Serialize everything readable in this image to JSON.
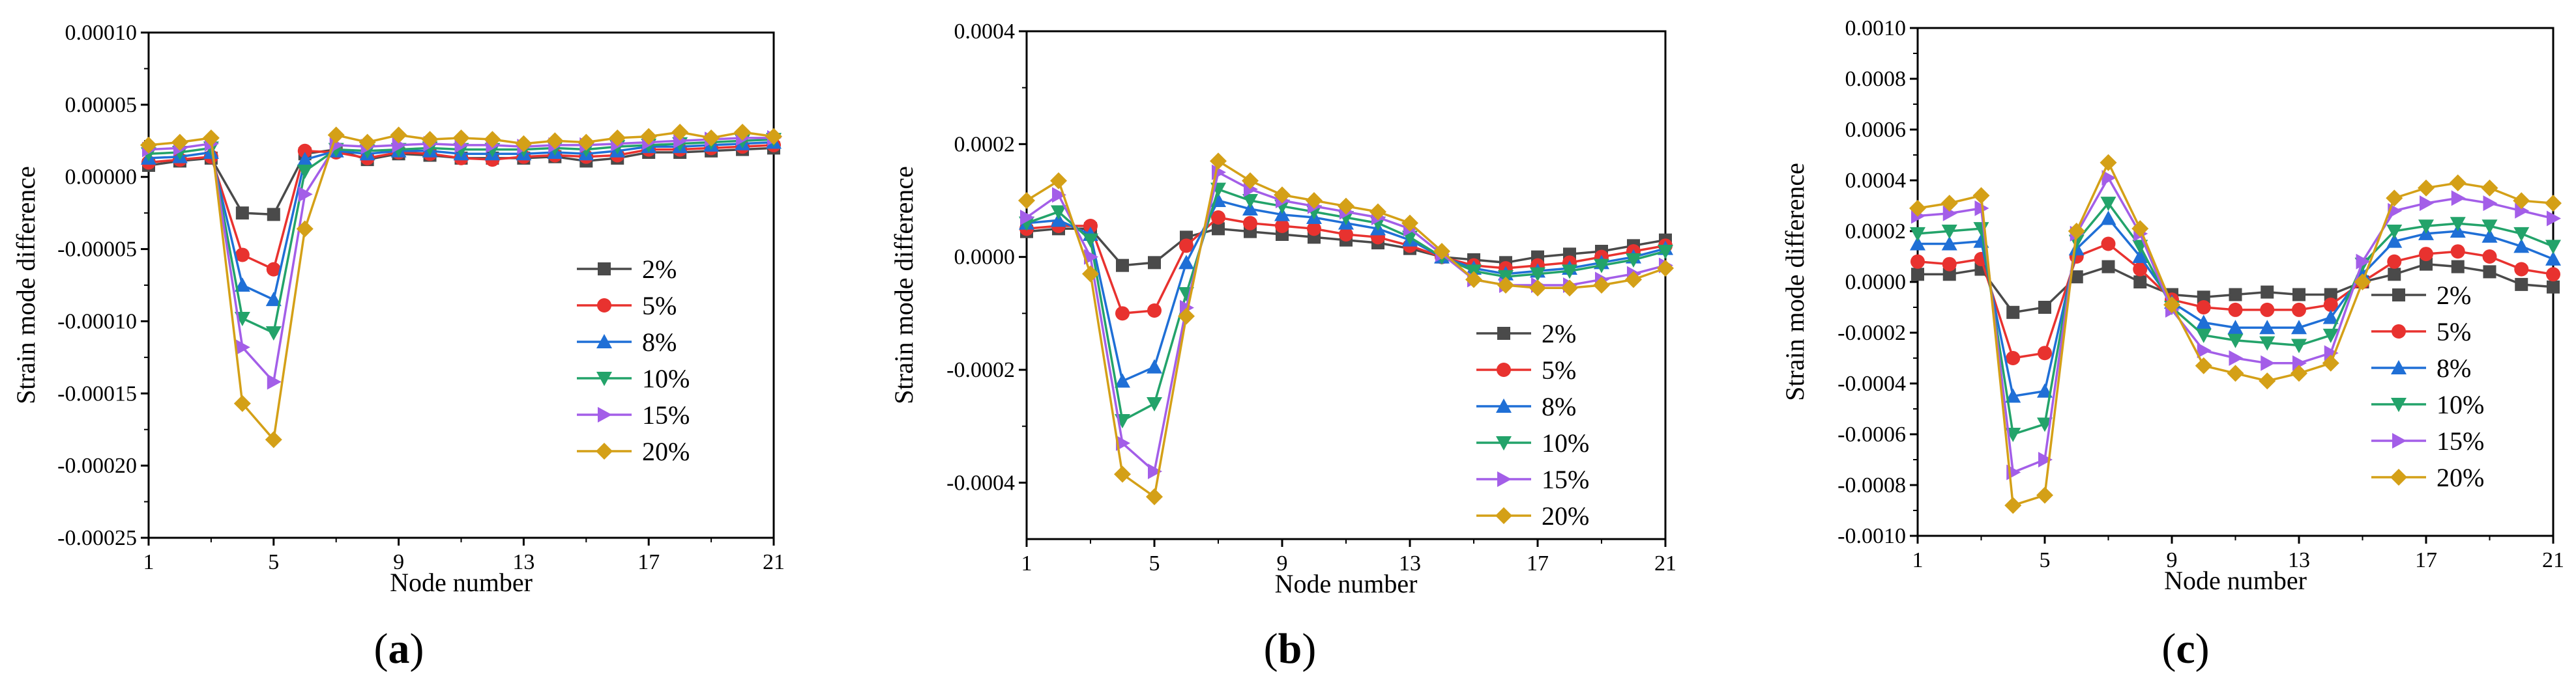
{
  "chart_data": [
    {
      "type": "line",
      "panel_label": "a",
      "xlabel": "Node number",
      "ylabel": "Strain mode difference",
      "x": [
        1,
        2,
        3,
        4,
        5,
        6,
        7,
        8,
        9,
        10,
        11,
        12,
        13,
        14,
        15,
        16,
        17,
        18,
        19,
        20,
        21
      ],
      "xticks": [
        1,
        5,
        9,
        13,
        17,
        21
      ],
      "xtick_labels": [
        "1",
        "5",
        "9",
        "13",
        "17",
        "21"
      ],
      "xlim": [
        1,
        21
      ],
      "ylim": [
        -0.00025,
        0.0001
      ],
      "yticks": [
        -0.00025,
        -0.0002,
        -0.00015,
        -0.0001,
        -5e-05,
        0,
        5e-05,
        0.0001
      ],
      "ytick_labels": [
        "-0.00025",
        "-0.00020",
        "-0.00015",
        "-0.00010",
        "-0.00005",
        "0.00000",
        "0.00005",
        "0.00010"
      ],
      "legend_position": "lower-right",
      "series": [
        {
          "name": "2%",
          "color": "#4a4a4a",
          "marker": "square",
          "values": [
            8e-06,
            1.1e-05,
            1.3e-05,
            -2.5e-05,
            -2.6e-05,
            1.6e-05,
            1.9e-05,
            1.2e-05,
            1.6e-05,
            1.5e-05,
            1.3e-05,
            1.3e-05,
            1.3e-05,
            1.4e-05,
            1.1e-05,
            1.3e-05,
            1.7e-05,
            1.7e-05,
            1.8e-05,
            1.9e-05,
            2e-05
          ]
        },
        {
          "name": "5%",
          "color": "#e8322f",
          "marker": "circle",
          "values": [
            1e-05,
            1.2e-05,
            1.4e-05,
            -5.4e-05,
            -6.4e-05,
            1.8e-05,
            1.7e-05,
            1.3e-05,
            1.7e-05,
            1.6e-05,
            1.3e-05,
            1.2e-05,
            1.4e-05,
            1.5e-05,
            1.4e-05,
            1.5e-05,
            1.9e-05,
            1.9e-05,
            2e-05,
            2.1e-05,
            2.2e-05
          ]
        },
        {
          "name": "8%",
          "color": "#1f6fd6",
          "marker": "triangle-up",
          "values": [
            1.3e-05,
            1.4e-05,
            1.7e-05,
            -7.5e-05,
            -8.5e-05,
            1.2e-05,
            1.8e-05,
            1.6e-05,
            1.8e-05,
            1.8e-05,
            1.6e-05,
            1.6e-05,
            1.6e-05,
            1.7e-05,
            1.6e-05,
            1.8e-05,
            2.1e-05,
            2.1e-05,
            2.2e-05,
            2.3e-05,
            2.4e-05
          ]
        },
        {
          "name": "10%",
          "color": "#23a36a",
          "marker": "triangle-down",
          "values": [
            1.6e-05,
            1.7e-05,
            2e-05,
            -9.8e-05,
            -0.000108,
            4e-06,
            1.9e-05,
            1.8e-05,
            1.9e-05,
            2e-05,
            1.9e-05,
            1.9e-05,
            1.9e-05,
            2e-05,
            1.9e-05,
            2.1e-05,
            2.2e-05,
            2.3e-05,
            2.4e-05,
            2.5e-05,
            2.6e-05
          ]
        },
        {
          "name": "15%",
          "color": "#a35ee8",
          "marker": "triangle-right",
          "values": [
            1.9e-05,
            2e-05,
            2.3e-05,
            -0.000118,
            -0.000142,
            -1.2e-05,
            2.2e-05,
            2.1e-05,
            2.2e-05,
            2.3e-05,
            2.2e-05,
            2.2e-05,
            2.1e-05,
            2.2e-05,
            2.2e-05,
            2.3e-05,
            2.4e-05,
            2.5e-05,
            2.6e-05,
            2.7e-05,
            2.7e-05
          ]
        },
        {
          "name": "20%",
          "color": "#d4a017",
          "marker": "diamond",
          "values": [
            2.2e-05,
            2.4e-05,
            2.7e-05,
            -0.000157,
            -0.000182,
            -3.6e-05,
            2.9e-05,
            2.4e-05,
            2.9e-05,
            2.6e-05,
            2.7e-05,
            2.6e-05,
            2.3e-05,
            2.5e-05,
            2.4e-05,
            2.7e-05,
            2.8e-05,
            3.1e-05,
            2.7e-05,
            3.1e-05,
            2.8e-05
          ]
        }
      ]
    },
    {
      "type": "line",
      "panel_label": "b",
      "xlabel": "Node number",
      "ylabel": "Strain mode difference",
      "x": [
        1,
        2,
        3,
        4,
        5,
        6,
        7,
        8,
        9,
        10,
        11,
        12,
        13,
        14,
        15,
        16,
        17,
        18,
        19,
        20,
        21
      ],
      "xticks": [
        1,
        5,
        9,
        13,
        17,
        21
      ],
      "xtick_labels": [
        "1",
        "5",
        "9",
        "13",
        "17",
        "21"
      ],
      "xlim": [
        1,
        21
      ],
      "ylim": [
        -0.0005,
        0.0004
      ],
      "yticks": [
        -0.0004,
        -0.0002,
        0,
        0.0002,
        0.0004
      ],
      "ytick_labels": [
        "-0.0004",
        "-0.0002",
        "0.0000",
        "0.0002",
        "0.0004"
      ],
      "legend_position": "lower-right",
      "series": [
        {
          "name": "2%",
          "color": "#4a4a4a",
          "marker": "square",
          "values": [
            4.5e-05,
            5e-05,
            5e-05,
            -1.5e-05,
            -1e-05,
            3.5e-05,
            5e-05,
            4.5e-05,
            4e-05,
            3.5e-05,
            3e-05,
            2.5e-05,
            1.5e-05,
            0,
            -5e-06,
            -1e-05,
            0,
            5e-06,
            1e-05,
            2e-05,
            3e-05
          ]
        },
        {
          "name": "5%",
          "color": "#e8322f",
          "marker": "circle",
          "values": [
            5e-05,
            5.5e-05,
            5.5e-05,
            -0.0001,
            -9.5e-05,
            2e-05,
            7e-05,
            6e-05,
            5.5e-05,
            5e-05,
            4e-05,
            3.5e-05,
            2e-05,
            0,
            -1.5e-05,
            -2e-05,
            -1.5e-05,
            -1e-05,
            0,
            1e-05,
            2e-05
          ]
        },
        {
          "name": "8%",
          "color": "#1f6fd6",
          "marker": "triangle-up",
          "values": [
            6e-05,
            6.5e-05,
            4e-05,
            -0.00022,
            -0.000195,
            -1e-05,
            0.0001,
            8.5e-05,
            7.5e-05,
            7e-05,
            6e-05,
            5e-05,
            3e-05,
            0,
            -2e-05,
            -3e-05,
            -2.5e-05,
            -2e-05,
            -1e-05,
            0,
            1.5e-05
          ]
        },
        {
          "name": "10%",
          "color": "#23a36a",
          "marker": "triangle-down",
          "values": [
            6e-05,
            8e-05,
            3e-05,
            -0.00029,
            -0.00026,
            -6.5e-05,
            0.00012,
            0.0001,
            9e-05,
            8e-05,
            7e-05,
            6e-05,
            3.5e-05,
            0,
            -2.5e-05,
            -3.5e-05,
            -3e-05,
            -2.5e-05,
            -1.5e-05,
            -5e-06,
            1e-05
          ]
        },
        {
          "name": "15%",
          "color": "#a35ee8",
          "marker": "triangle-right",
          "values": [
            7e-05,
            0.00011,
            0,
            -0.00033,
            -0.00038,
            -9e-05,
            0.00015,
            0.00012,
            0.0001,
            9e-05,
            8e-05,
            7e-05,
            5e-05,
            5e-06,
            -4e-05,
            -5e-05,
            -5e-05,
            -5e-05,
            -4e-05,
            -3e-05,
            -1.5e-05
          ]
        },
        {
          "name": "20%",
          "color": "#d4a017",
          "marker": "diamond",
          "values": [
            0.0001,
            0.000135,
            -3e-05,
            -0.000385,
            -0.000425,
            -0.000105,
            0.00017,
            0.000135,
            0.00011,
            0.0001,
            9e-05,
            8e-05,
            6e-05,
            1e-05,
            -4e-05,
            -5e-05,
            -5.5e-05,
            -5.5e-05,
            -5e-05,
            -4e-05,
            -2e-05
          ]
        }
      ]
    },
    {
      "type": "line",
      "panel_label": "c",
      "xlabel": "Node number",
      "ylabel": "Strain mode difference",
      "x": [
        1,
        2,
        3,
        4,
        5,
        6,
        7,
        8,
        9,
        10,
        11,
        12,
        13,
        14,
        15,
        16,
        17,
        18,
        19,
        20,
        21
      ],
      "xticks": [
        1,
        5,
        9,
        13,
        17,
        21
      ],
      "xtick_labels": [
        "1",
        "5",
        "9",
        "13",
        "17",
        "21"
      ],
      "xlim": [
        1,
        21
      ],
      "ylim": [
        -0.001,
        0.001
      ],
      "yticks": [
        -0.001,
        -0.0008,
        -0.0006,
        -0.0004,
        -0.0002,
        0,
        0.0002,
        0.0004,
        0.0006,
        0.0008,
        0.001
      ],
      "ytick_labels": [
        "-0.0010",
        "-0.0008",
        "-0.0006",
        "-0.0004",
        "-0.0002",
        "0.0000",
        "0.0002",
        "0.0004",
        "0.0006",
        "0.0008",
        "0.0010"
      ],
      "legend_position": "lower-right",
      "series": [
        {
          "name": "2%",
          "color": "#4a4a4a",
          "marker": "square",
          "values": [
            3e-05,
            3e-05,
            5e-05,
            -0.00012,
            -0.0001,
            2e-05,
            6e-05,
            0,
            -5e-05,
            -6e-05,
            -5e-05,
            -4e-05,
            -5e-05,
            -5e-05,
            0,
            3e-05,
            7e-05,
            6e-05,
            4e-05,
            -1e-05,
            -2e-05
          ]
        },
        {
          "name": "5%",
          "color": "#e8322f",
          "marker": "circle",
          "values": [
            8e-05,
            7e-05,
            9e-05,
            -0.0003,
            -0.00028,
            0.0001,
            0.00015,
            5e-05,
            -7e-05,
            -0.0001,
            -0.00011,
            -0.00011,
            -0.00011,
            -9e-05,
            0,
            8e-05,
            0.00011,
            0.00012,
            0.0001,
            5e-05,
            3e-05
          ]
        },
        {
          "name": "8%",
          "color": "#1f6fd6",
          "marker": "triangle-up",
          "values": [
            0.00015,
            0.00015,
            0.00016,
            -0.00045,
            -0.00043,
            0.00013,
            0.00025,
            0.0001,
            -8e-05,
            -0.00016,
            -0.00018,
            -0.00018,
            -0.00018,
            -0.00014,
            3e-05,
            0.00016,
            0.00019,
            0.0002,
            0.00018,
            0.00014,
            9e-05
          ]
        },
        {
          "name": "10%",
          "color": "#23a36a",
          "marker": "triangle-down",
          "values": [
            0.00019,
            0.0002,
            0.00021,
            -0.0006,
            -0.00056,
            0.00016,
            0.00031,
            0.00014,
            -0.0001,
            -0.00021,
            -0.00023,
            -0.00024,
            -0.00025,
            -0.00021,
            7e-05,
            0.0002,
            0.00022,
            0.00023,
            0.00022,
            0.00019,
            0.00014
          ]
        },
        {
          "name": "15%",
          "color": "#a35ee8",
          "marker": "triangle-right",
          "values": [
            0.00026,
            0.00027,
            0.00029,
            -0.00075,
            -0.0007,
            0.00019,
            0.00041,
            0.00019,
            -0.00011,
            -0.00027,
            -0.0003,
            -0.00032,
            -0.00032,
            -0.00028,
            8e-05,
            0.00028,
            0.00031,
            0.00033,
            0.00031,
            0.00028,
            0.00025
          ]
        },
        {
          "name": "20%",
          "color": "#d4a017",
          "marker": "diamond",
          "values": [
            0.00029,
            0.00031,
            0.00034,
            -0.00088,
            -0.00084,
            0.0002,
            0.00047,
            0.00021,
            -9e-05,
            -0.00033,
            -0.00036,
            -0.00039,
            -0.00036,
            -0.00032,
            0,
            0.00033,
            0.00037,
            0.00039,
            0.00037,
            0.00032,
            0.00031
          ]
        }
      ]
    }
  ]
}
